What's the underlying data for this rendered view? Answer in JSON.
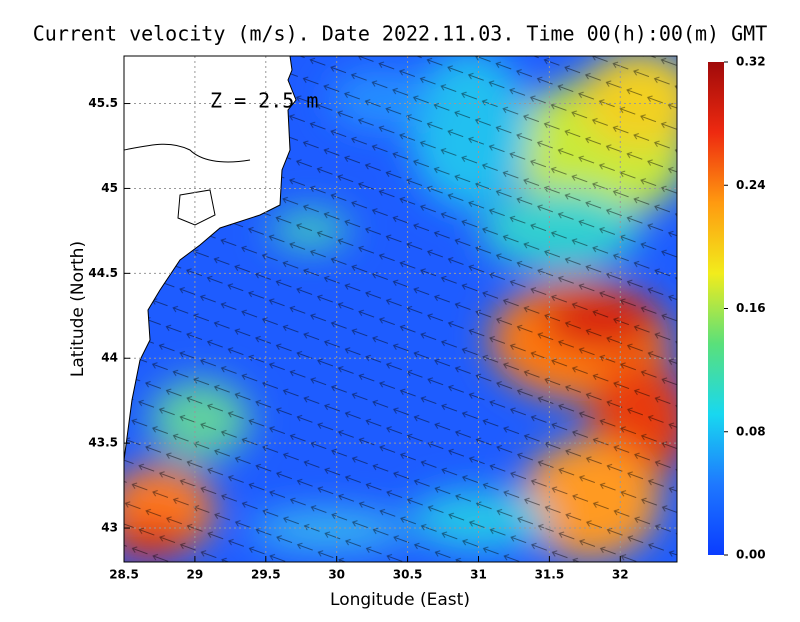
{
  "chart_data": {
    "type": "map",
    "title": "Current velocity (m/s). Date 2022.11.03. Time 00(h):00(m) GMT",
    "annotation": "Z = 2.5 m",
    "x_label": "Longitude (East)",
    "y_label": "Latitude (North)",
    "xlim": [
      28.5,
      32.4
    ],
    "xticks": [
      28.5,
      29,
      29.5,
      30,
      30.5,
      31,
      31.5,
      32
    ],
    "ylim": [
      42.8,
      45.78
    ],
    "yticks": [
      43,
      43.5,
      44,
      44.5,
      45,
      45.5
    ],
    "grid": true,
    "colorbar_lim": [
      0,
      0.32
    ],
    "colorbar_ticks": [
      {
        "value": 0,
        "label": "0.00"
      },
      0.08,
      0.16,
      0.24,
      0.32
    ],
    "colormap": [
      "#0a3cff",
      "#1e78ff",
      "#18d8f0",
      "#5ae07a",
      "#f2ec1c",
      "#ff9a10",
      "#ee2a10",
      "#a00a0a"
    ]
  }
}
